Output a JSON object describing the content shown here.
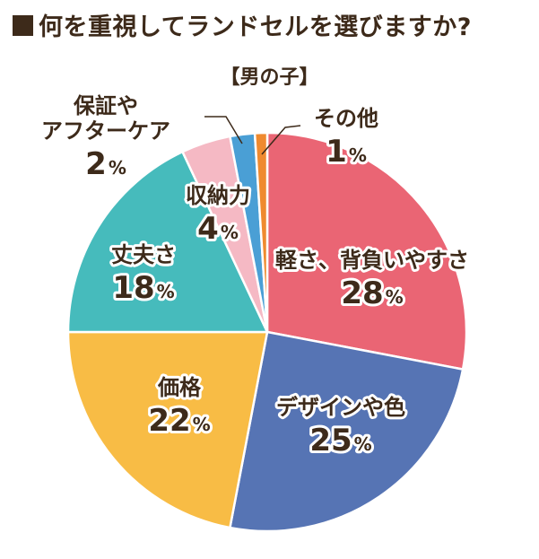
{
  "title": "■何を重視してランドセルを選びますか?",
  "subtitle": "【男の子】",
  "chart_data": {
    "type": "pie",
    "title": "何を重視してランドセルを選びますか?",
    "subtitle": "【男の子】",
    "unit": "%",
    "slices": [
      {
        "name": "軽さ、背負いやすさ",
        "value": 28,
        "color": "#ea6574"
      },
      {
        "name": "デザインや色",
        "value": 25,
        "color": "#5674b4"
      },
      {
        "name": "価格",
        "value": 22,
        "color": "#f8bc45"
      },
      {
        "name": "丈夫さ",
        "value": 18,
        "color": "#46bbbc"
      },
      {
        "name": "収納力",
        "value": 4,
        "color": "#f5b9c4"
      },
      {
        "name": "保証やアフターケア",
        "value": 2,
        "color": "#4a9fd5"
      },
      {
        "name": "その他",
        "value": 1,
        "color": "#ef8a2f"
      }
    ]
  },
  "labels": [
    {
      "lines": [
        "軽さ、背負いやすさ"
      ],
      "pct": "28"
    },
    {
      "lines": [
        "デザインや色"
      ],
      "pct": "25"
    },
    {
      "lines": [
        "価格"
      ],
      "pct": "22"
    },
    {
      "lines": [
        "丈夫さ"
      ],
      "pct": "18"
    },
    {
      "lines": [
        "収納力"
      ],
      "pct": "4"
    },
    {
      "lines": [
        "保証や",
        "アフターケア"
      ],
      "pct": "2"
    },
    {
      "lines": [
        "その他"
      ],
      "pct": "1"
    }
  ]
}
